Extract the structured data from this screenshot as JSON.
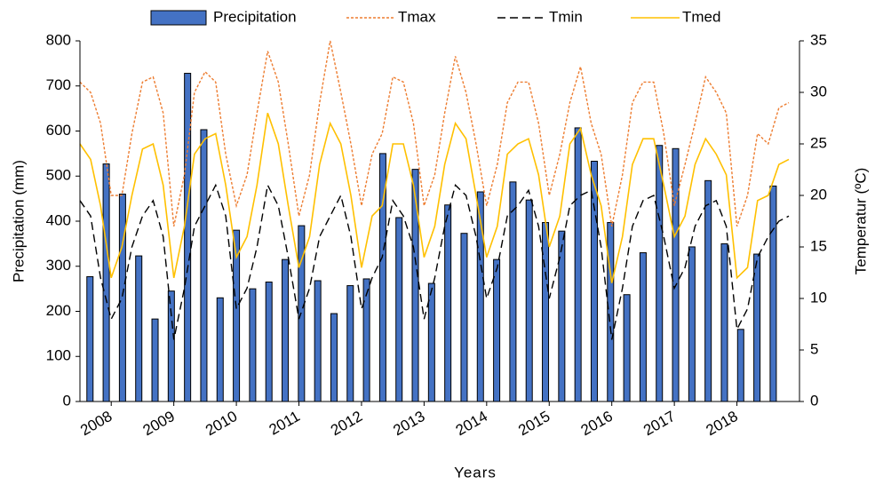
{
  "chart_data": {
    "type": "combo",
    "x_label": "Years",
    "y_label": "Precipitation (mm)",
    "y2_label": "Temperatur (ºC)",
    "xlim": [
      2007.5,
      2019.0
    ],
    "xticks": [
      2008,
      2009,
      2010,
      2011,
      2012,
      2013,
      2014,
      2015,
      2016,
      2017,
      2018
    ],
    "ylim": [
      0,
      800
    ],
    "yticks": [
      0,
      100,
      200,
      300,
      400,
      500,
      600,
      700,
      800
    ],
    "y2lim": [
      0,
      35
    ],
    "y2ticks": [
      0,
      5,
      10,
      15,
      20,
      25,
      30,
      35
    ],
    "legend": "top",
    "x": [
      2007.5,
      2007.67,
      2007.83,
      2008.0,
      2008.17,
      2008.33,
      2008.5,
      2008.67,
      2008.83,
      2009.0,
      2009.17,
      2009.33,
      2009.5,
      2009.67,
      2009.83,
      2010.0,
      2010.17,
      2010.33,
      2010.5,
      2010.67,
      2010.83,
      2011.0,
      2011.17,
      2011.33,
      2011.5,
      2011.67,
      2011.83,
      2012.0,
      2012.17,
      2012.33,
      2012.5,
      2012.67,
      2012.83,
      2013.0,
      2013.17,
      2013.33,
      2013.5,
      2013.67,
      2013.83,
      2014.0,
      2014.17,
      2014.33,
      2014.5,
      2014.67,
      2014.83,
      2015.0,
      2015.17,
      2015.33,
      2015.5,
      2015.67,
      2015.83,
      2016.0,
      2016.17,
      2016.33,
      2016.5,
      2016.67,
      2016.83,
      2017.0,
      2017.17,
      2017.33,
      2017.5,
      2017.67,
      2017.83,
      2018.0,
      2018.17,
      2018.33,
      2018.5,
      2018.67,
      2018.83
    ],
    "series": [
      {
        "name": "Precipitation",
        "type": "bar",
        "axis": "y",
        "color": "#4472c4",
        "x": [
          2007.66,
          2007.92,
          2008.18,
          2008.44,
          2008.7,
          2008.96,
          2009.22,
          2009.48,
          2009.74,
          2010.0,
          2010.26,
          2010.52,
          2010.78,
          2011.04,
          2011.3,
          2011.56,
          2011.82,
          2012.08,
          2012.34,
          2012.6,
          2012.86,
          2013.12,
          2013.38,
          2013.64,
          2013.9,
          2014.16,
          2014.42,
          2014.68,
          2014.94,
          2015.2,
          2015.46,
          2015.72,
          2015.98,
          2016.24,
          2016.5,
          2016.76,
          2017.02,
          2017.28,
          2017.54,
          2017.8,
          2018.06,
          2018.32,
          2018.58
        ],
        "values": [
          277,
          527,
          460,
          323,
          183,
          245,
          728,
          603,
          230,
          380,
          250,
          265,
          315,
          390,
          268,
          195,
          257,
          272,
          550,
          408,
          515,
          262,
          436,
          373,
          465,
          315,
          487,
          447,
          397,
          378,
          607,
          533,
          397,
          237,
          330,
          568,
          561,
          343,
          490,
          350,
          160,
          327,
          478
        ]
      },
      {
        "name": "Tmax",
        "type": "line",
        "axis": "y2",
        "color": "#ed7d31",
        "line_style": "dotted",
        "values": [
          31,
          30,
          27,
          20,
          20,
          26,
          31,
          31.5,
          28,
          17,
          22,
          30,
          32,
          31,
          24,
          19,
          22,
          28,
          34,
          31,
          25,
          18,
          22,
          29,
          35,
          30,
          25,
          19,
          24,
          26,
          31.5,
          31,
          27,
          19,
          22,
          28,
          33.5,
          30,
          25,
          19,
          23,
          29,
          31,
          31,
          27,
          20,
          24,
          29,
          32.5,
          27,
          24,
          17,
          22,
          29,
          31,
          31,
          26,
          19,
          23,
          27,
          31.5,
          30,
          28,
          17,
          20,
          26,
          25,
          28.5,
          29
        ]
      },
      {
        "name": "Tmin",
        "type": "line",
        "axis": "y2",
        "color": "#000000",
        "line_style": "dashed",
        "values": [
          19.5,
          18,
          12,
          8,
          10,
          15,
          18,
          19.5,
          16,
          6,
          11,
          17,
          19,
          21,
          18,
          9,
          11,
          15,
          21,
          19,
          14,
          8,
          11,
          16,
          18,
          20,
          16,
          9,
          12,
          14,
          19.5,
          18,
          15,
          8,
          12,
          17,
          21,
          20,
          16,
          10,
          13,
          18,
          19,
          20.5,
          17,
          10,
          14,
          19,
          20,
          20.5,
          15,
          6,
          11,
          17,
          19.5,
          20,
          16,
          11,
          13,
          17,
          19,
          19.5,
          17,
          7,
          9,
          14,
          16,
          17.5,
          18
        ]
      },
      {
        "name": "Tmed",
        "type": "line",
        "axis": "y2",
        "color": "#ffc000",
        "line_style": "solid",
        "values": [
          25,
          23.5,
          19,
          12,
          15,
          20,
          24.5,
          25,
          21,
          12,
          17,
          24,
          25.5,
          26,
          21,
          14,
          16,
          21,
          28,
          25,
          19,
          13,
          16,
          23,
          27,
          25,
          20,
          13,
          18,
          19,
          25,
          25,
          21,
          14,
          17,
          23,
          27,
          25.5,
          20,
          14,
          17,
          24,
          25,
          25.5,
          22,
          15,
          18,
          25,
          26.5,
          22,
          19,
          11.5,
          16,
          23,
          25.5,
          25.5,
          21,
          16,
          18,
          23,
          25.5,
          24,
          22,
          12,
          13,
          19.5,
          20,
          23,
          23.5
        ]
      }
    ]
  }
}
